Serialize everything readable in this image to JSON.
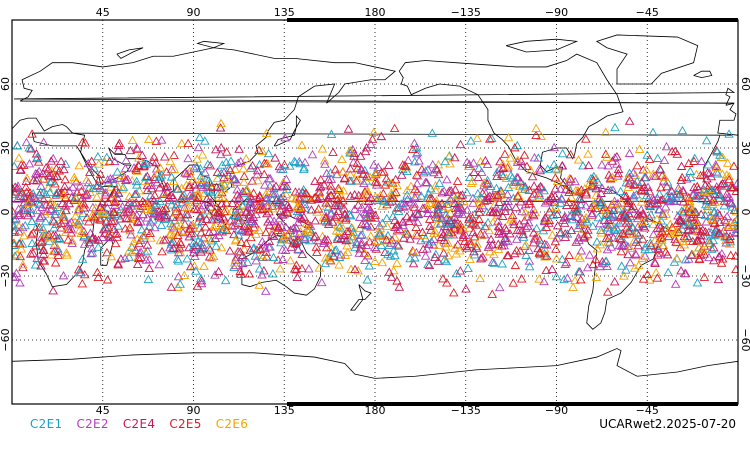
{
  "map": {
    "projection": "cylindrical-equidistant",
    "center_longitude": 180,
    "lon_range": [
      0,
      360
    ],
    "lat_range": [
      -90,
      90
    ],
    "gridlines": "dotted",
    "lon_ticks": [
      45,
      90,
      135,
      180,
      225,
      270,
      315
    ],
    "lon_tick_labels": [
      "45",
      "90",
      "135",
      "180",
      "−135",
      "−90",
      "−45"
    ],
    "lat_ticks": [
      60,
      30,
      0,
      -30,
      -60
    ],
    "lat_tick_labels": [
      "60",
      "30",
      "0",
      "−30",
      "−60"
    ],
    "marker_shape": "open-triangle",
    "obs_lat_range": [
      -45,
      45
    ]
  },
  "legend": {
    "items": [
      {
        "label": "C2E1",
        "color": "#1ba3c6"
      },
      {
        "label": "C2E2",
        "color": "#b23fbf"
      },
      {
        "label": "C2E4",
        "color": "#c2185b"
      },
      {
        "label": "C2E5",
        "color": "#e01b24"
      },
      {
        "label": "C2E6",
        "color": "#f5a300"
      }
    ]
  },
  "credit": "UCARwet2.2025-07-20"
}
